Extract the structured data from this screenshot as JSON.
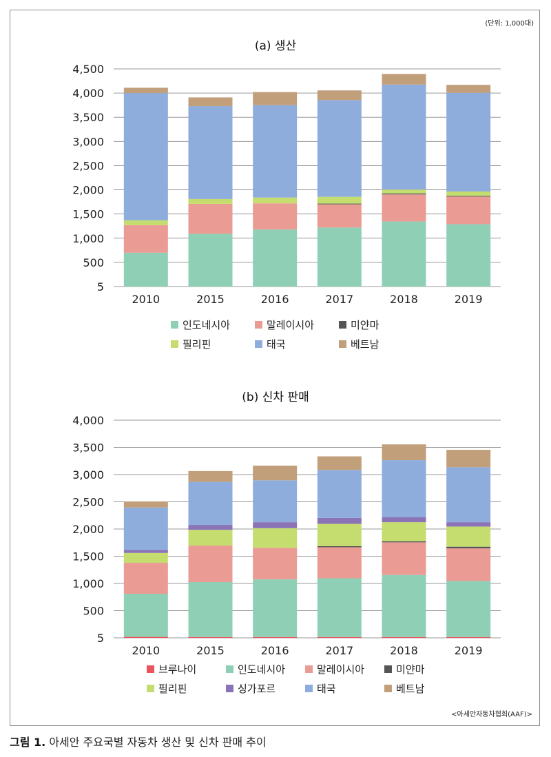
{
  "unit_note": "(단위: 1,000대)",
  "source_note": "<아세안자동차협회(AAF)>",
  "caption": {
    "label": "그림 1.",
    "text": " 아세안 주요국별 자동차 생산 및 신차 판매 추이"
  },
  "colors": {
    "브루나이": "#e8545a",
    "인도네시아": "#8fcfb5",
    "말레이시아": "#ea9b93",
    "미얀마": "#555555",
    "필리핀": "#c4dd6e",
    "싱가포르": "#8b73b7",
    "태국": "#8eaddc",
    "베트남": "#c19f7b"
  },
  "chart_data": [
    {
      "type": "bar",
      "stacked": true,
      "title": "(a) 생산",
      "categories": [
        "2010",
        "2015",
        "2016",
        "2017",
        "2018",
        "2019"
      ],
      "yticks": [
        "5",
        "500",
        "1,000",
        "1,500",
        "2,000",
        "2,500",
        "3,000",
        "3,500",
        "4,000",
        "4,500"
      ],
      "ylim": [
        0,
        4500
      ],
      "grid": true,
      "legend_position": "bottom",
      "legend_rows": [
        [
          "인도네시아",
          "말레이시아",
          "미얀마"
        ],
        [
          "필리핀",
          "태국",
          "베트남"
        ]
      ],
      "series": [
        {
          "name": "인도네시아",
          "values": [
            700,
            1090,
            1180,
            1220,
            1345,
            1290
          ]
        },
        {
          "name": "말레이시아",
          "values": [
            570,
            620,
            540,
            480,
            560,
            570
          ]
        },
        {
          "name": "미얀마",
          "values": [
            0,
            0,
            0,
            15,
            20,
            15
          ]
        },
        {
          "name": "필리핀",
          "values": [
            100,
            100,
            120,
            140,
            80,
            90
          ]
        },
        {
          "name": "태국",
          "values": [
            2630,
            1920,
            1910,
            2000,
            2170,
            2040
          ]
        },
        {
          "name": "베트남",
          "values": [
            110,
            180,
            270,
            200,
            220,
            165
          ]
        }
      ]
    },
    {
      "type": "bar",
      "stacked": true,
      "title": "(b) 신차 판매",
      "categories": [
        "2010",
        "2015",
        "2016",
        "2017",
        "2018",
        "2019"
      ],
      "yticks": [
        "5",
        "500",
        "1,000",
        "1,500",
        "2,000",
        "2,500",
        "3,000",
        "3,500",
        "4,000"
      ],
      "ylim": [
        0,
        4000
      ],
      "grid": true,
      "legend_position": "bottom",
      "legend_rows": [
        [
          "브루나이",
          "인도네시아",
          "말레이시아",
          "미얀마"
        ],
        [
          "필리핀",
          "싱가포르",
          "태국",
          "베트남"
        ]
      ],
      "series": [
        {
          "name": "브루나이",
          "values": [
            18,
            15,
            15,
            15,
            15,
            15
          ]
        },
        {
          "name": "인도네시아",
          "values": [
            792,
            1010,
            1060,
            1080,
            1140,
            1030
          ]
        },
        {
          "name": "말레이시아",
          "values": [
            570,
            670,
            580,
            570,
            600,
            600
          ]
        },
        {
          "name": "미얀마",
          "values": [
            0,
            0,
            0,
            20,
            20,
            30
          ]
        },
        {
          "name": "필리핀",
          "values": [
            180,
            290,
            360,
            410,
            350,
            370
          ]
        },
        {
          "name": "싱가포르",
          "values": [
            55,
            90,
            110,
            110,
            90,
            80
          ]
        },
        {
          "name": "태국",
          "values": [
            780,
            790,
            770,
            880,
            1050,
            1010
          ]
        },
        {
          "name": "베트남",
          "values": [
            110,
            200,
            270,
            250,
            290,
            320
          ]
        }
      ]
    }
  ]
}
